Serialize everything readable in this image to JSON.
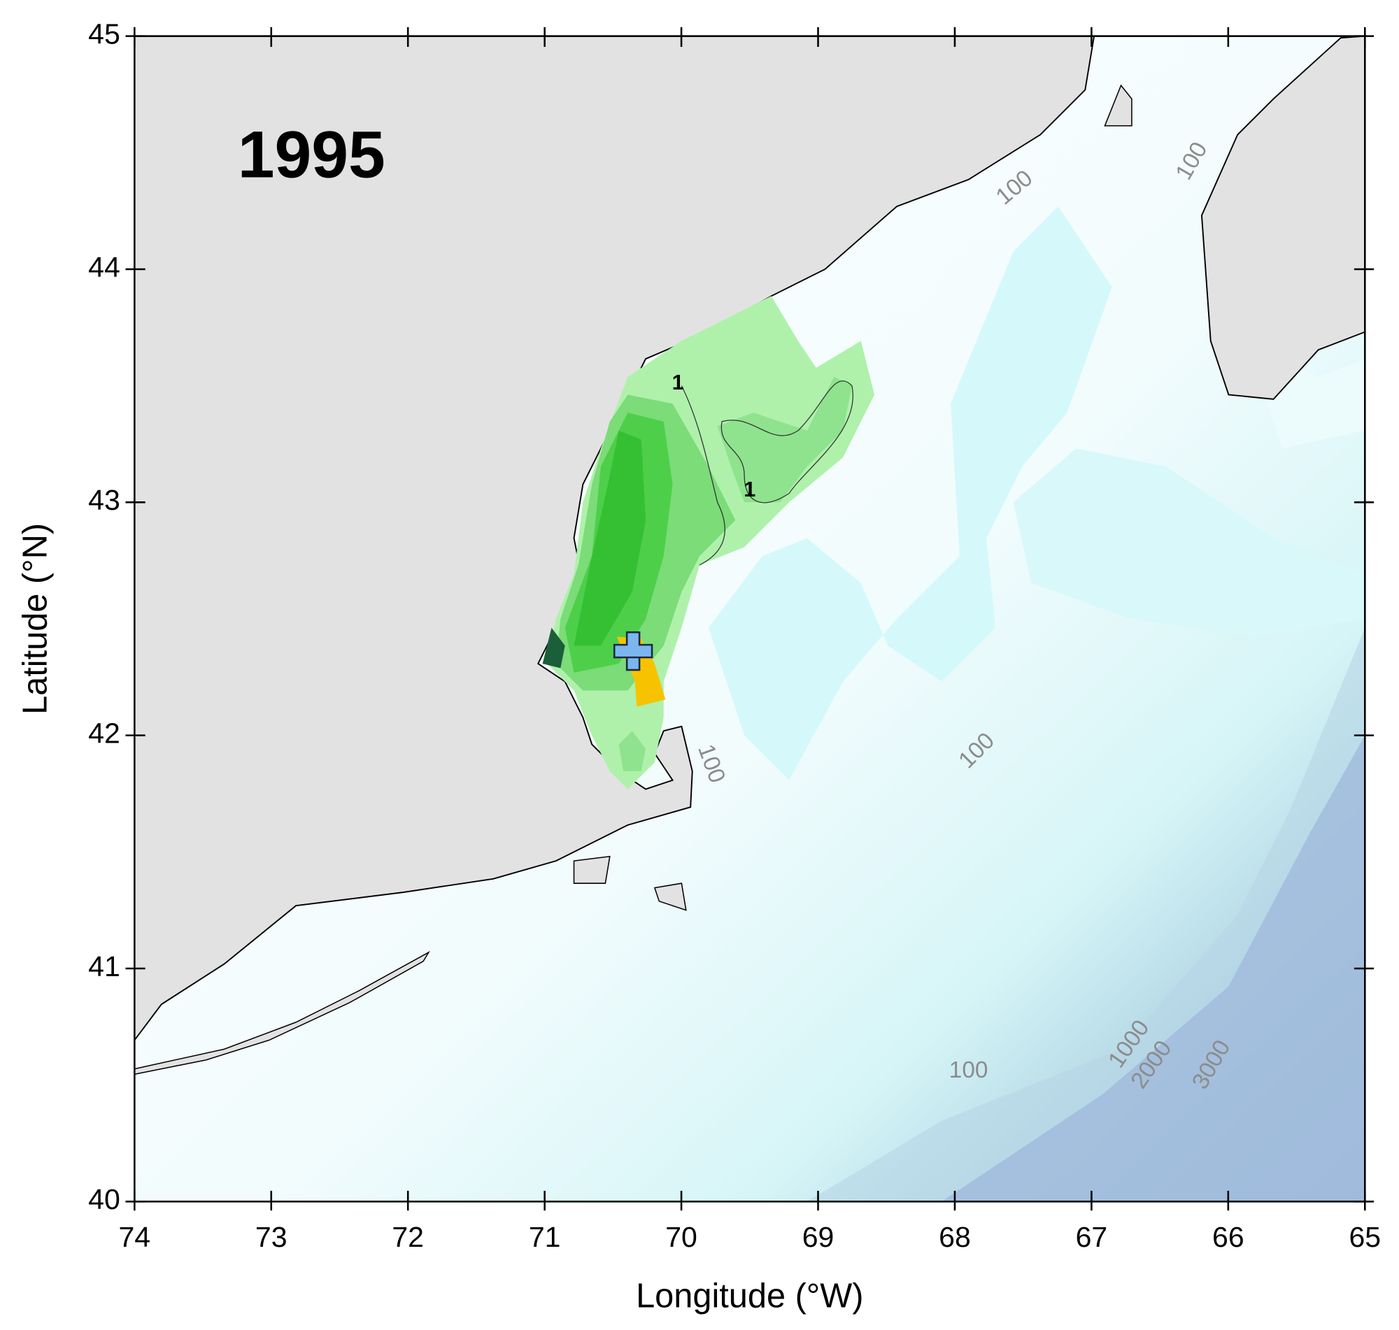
{
  "map": {
    "title": "1995",
    "x_label": "Longitude (°W)",
    "y_label": "Latitude (°N)",
    "xlim": [
      74,
      65
    ],
    "ylim": [
      40,
      45
    ],
    "xticks": [
      74,
      73,
      72,
      71,
      70,
      69,
      68,
      67,
      66,
      65
    ],
    "yticks": [
      40,
      41,
      42,
      43,
      44,
      45
    ],
    "contour_labels": [
      "100",
      "100",
      "100",
      "100",
      "100",
      "1000",
      "2000",
      "3000",
      "1",
      "1"
    ]
  }
}
